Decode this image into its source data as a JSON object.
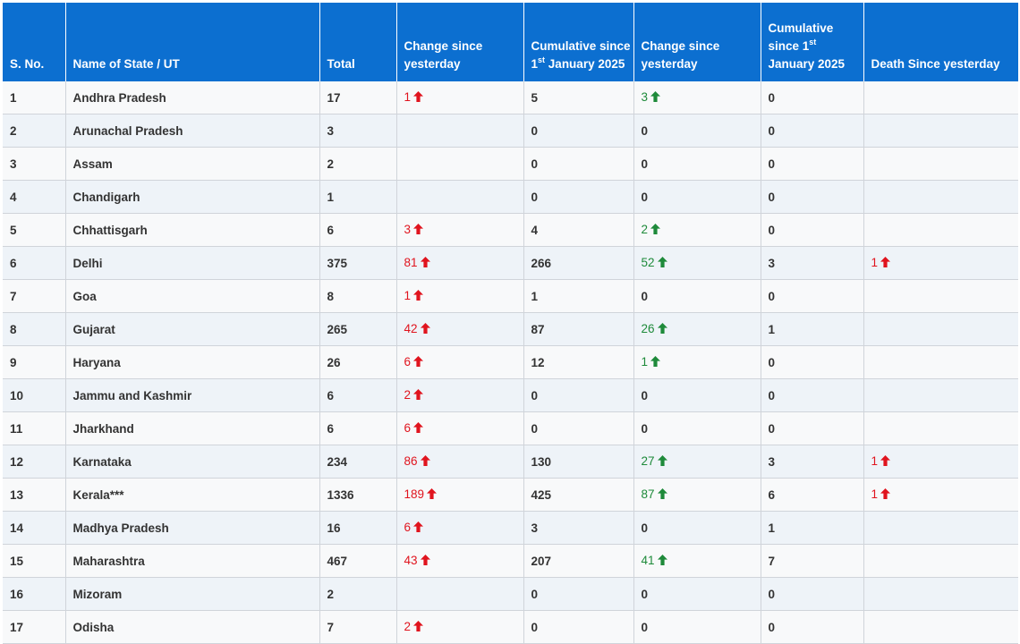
{
  "headers": {
    "sno": "S. No.",
    "state": "Name of State / UT",
    "total": "Total",
    "change1": "Change since yesterday",
    "cum1_pre": "Cumulative since 1",
    "cum1_sup": "st",
    "cum1_post": "January 2025",
    "change2": "Change since yesterday",
    "cum2_pre": "Cumulative since 1",
    "cum2_sup": "st",
    "cum2_post": "January 2025",
    "death": "Death Since yesterday"
  },
  "colors": {
    "header_bg": "#0c6fd0",
    "increase_red": "#e0141e",
    "increase_green": "#1e8a3a"
  },
  "rows": [
    {
      "sno": "1",
      "state": "Andhra Pradesh",
      "total": "17",
      "change": "1",
      "cumulative": "5",
      "change_cum": "3",
      "cum_deaths": "0",
      "death_change": ""
    },
    {
      "sno": "2",
      "state": "Arunachal Pradesh",
      "total": "3",
      "change": "",
      "cumulative": "0",
      "change_cum": "0",
      "cum_deaths": "0",
      "death_change": ""
    },
    {
      "sno": "3",
      "state": "Assam",
      "total": "2",
      "change": "",
      "cumulative": "0",
      "change_cum": "0",
      "cum_deaths": "0",
      "death_change": ""
    },
    {
      "sno": "4",
      "state": "Chandigarh",
      "total": "1",
      "change": "",
      "cumulative": "0",
      "change_cum": "0",
      "cum_deaths": "0",
      "death_change": ""
    },
    {
      "sno": "5",
      "state": "Chhattisgarh",
      "total": "6",
      "change": "3",
      "cumulative": "4",
      "change_cum": "2",
      "cum_deaths": "0",
      "death_change": ""
    },
    {
      "sno": "6",
      "state": "Delhi",
      "total": "375",
      "change": "81",
      "cumulative": "266",
      "change_cum": "52",
      "cum_deaths": "3",
      "death_change": "1"
    },
    {
      "sno": "7",
      "state": "Goa",
      "total": "8",
      "change": "1",
      "cumulative": "1",
      "change_cum": "0",
      "cum_deaths": "0",
      "death_change": ""
    },
    {
      "sno": "8",
      "state": "Gujarat",
      "total": "265",
      "change": "42",
      "cumulative": "87",
      "change_cum": "26",
      "cum_deaths": "1",
      "death_change": ""
    },
    {
      "sno": "9",
      "state": "Haryana",
      "total": "26",
      "change": "6",
      "cumulative": "12",
      "change_cum": "1",
      "cum_deaths": "0",
      "death_change": ""
    },
    {
      "sno": "10",
      "state": "Jammu and Kashmir",
      "total": "6",
      "change": "2",
      "cumulative": "0",
      "change_cum": "0",
      "cum_deaths": "0",
      "death_change": ""
    },
    {
      "sno": "11",
      "state": "Jharkhand",
      "total": "6",
      "change": "6",
      "cumulative": "0",
      "change_cum": "0",
      "cum_deaths": "0",
      "death_change": ""
    },
    {
      "sno": "12",
      "state": "Karnataka",
      "total": "234",
      "change": "86",
      "cumulative": "130",
      "change_cum": "27",
      "cum_deaths": "3",
      "death_change": "1"
    },
    {
      "sno": "13",
      "state": "Kerala***",
      "total": "1336",
      "change": "189",
      "cumulative": "425",
      "change_cum": "87",
      "cum_deaths": "6",
      "death_change": "1"
    },
    {
      "sno": "14",
      "state": "Madhya Pradesh",
      "total": "16",
      "change": "6",
      "cumulative": "3",
      "change_cum": "0",
      "cum_deaths": "1",
      "death_change": ""
    },
    {
      "sno": "15",
      "state": "Maharashtra",
      "total": "467",
      "change": "43",
      "cumulative": "207",
      "change_cum": "41",
      "cum_deaths": "7",
      "death_change": ""
    },
    {
      "sno": "16",
      "state": "Mizoram",
      "total": "2",
      "change": "",
      "cumulative": "0",
      "change_cum": "0",
      "cum_deaths": "0",
      "death_change": ""
    },
    {
      "sno": "17",
      "state": "Odisha",
      "total": "7",
      "change": "2",
      "cumulative": "0",
      "change_cum": "0",
      "cum_deaths": "0",
      "death_change": ""
    }
  ]
}
